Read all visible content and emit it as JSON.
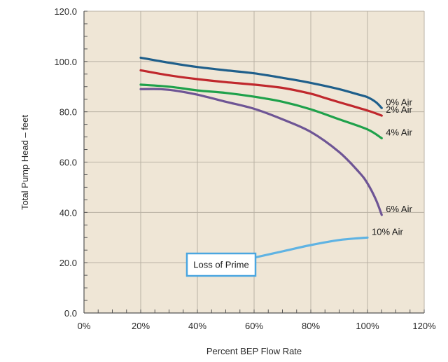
{
  "chart_data": {
    "type": "line",
    "title": "",
    "xlabel": "Percent BEP Flow Rate",
    "ylabel": "Total Pump Head – feet",
    "xlim": [
      0,
      120
    ],
    "ylim": [
      0,
      120
    ],
    "x_ticks": [
      "0%",
      "20%",
      "40%",
      "60%",
      "80%",
      "100%",
      "120%"
    ],
    "y_ticks": [
      "0.0",
      "20.0",
      "40.0",
      "60.0",
      "80.0",
      "100.0",
      "120.0"
    ],
    "grid": true,
    "plot_background": "#efe6d6",
    "series": [
      {
        "name": "0% Air",
        "color": "#1f5f8b",
        "points": [
          [
            20,
            101.5
          ],
          [
            30,
            99.5
          ],
          [
            40,
            97.8
          ],
          [
            50,
            96.5
          ],
          [
            60,
            95.3
          ],
          [
            70,
            93.5
          ],
          [
            80,
            91.5
          ],
          [
            90,
            89.0
          ],
          [
            97,
            86.8
          ],
          [
            100,
            85.8
          ],
          [
            103,
            83.8
          ],
          [
            105,
            81.5
          ]
        ]
      },
      {
        "name": "2% Air",
        "color": "#c0282d",
        "points": [
          [
            20,
            96.5
          ],
          [
            30,
            94.5
          ],
          [
            40,
            93.0
          ],
          [
            50,
            91.8
          ],
          [
            60,
            90.8
          ],
          [
            70,
            89.5
          ],
          [
            80,
            87.2
          ],
          [
            85,
            85.5
          ],
          [
            90,
            83.8
          ],
          [
            100,
            80.5
          ],
          [
            105,
            78.5
          ]
        ]
      },
      {
        "name": "4% Air",
        "color": "#1fa14b",
        "points": [
          [
            20,
            90.8
          ],
          [
            30,
            90.0
          ],
          [
            40,
            88.5
          ],
          [
            50,
            87.5
          ],
          [
            60,
            86.0
          ],
          [
            70,
            84.0
          ],
          [
            80,
            81.0
          ],
          [
            90,
            77.0
          ],
          [
            100,
            73.0
          ],
          [
            105,
            69.5
          ]
        ]
      },
      {
        "name": "6% Air",
        "color": "#6e5595",
        "points": [
          [
            20,
            89.0
          ],
          [
            27,
            89.0
          ],
          [
            33,
            88.3
          ],
          [
            40,
            86.8
          ],
          [
            50,
            84.0
          ],
          [
            60,
            81.2
          ],
          [
            70,
            77.0
          ],
          [
            80,
            72.0
          ],
          [
            90,
            64.0
          ],
          [
            97,
            56.0
          ],
          [
            100,
            51.5
          ],
          [
            103,
            45.0
          ],
          [
            105,
            39.0
          ]
        ]
      },
      {
        "name": "10% Air",
        "color": "#5fb3e3",
        "points": [
          [
            60,
            22.0
          ],
          [
            70,
            24.5
          ],
          [
            80,
            27.0
          ],
          [
            90,
            29.0
          ],
          [
            100,
            30.0
          ]
        ]
      }
    ],
    "annotations": [
      {
        "text": "Loss of Prime",
        "type": "callout-box",
        "points_to_series": "10% Air"
      }
    ]
  }
}
